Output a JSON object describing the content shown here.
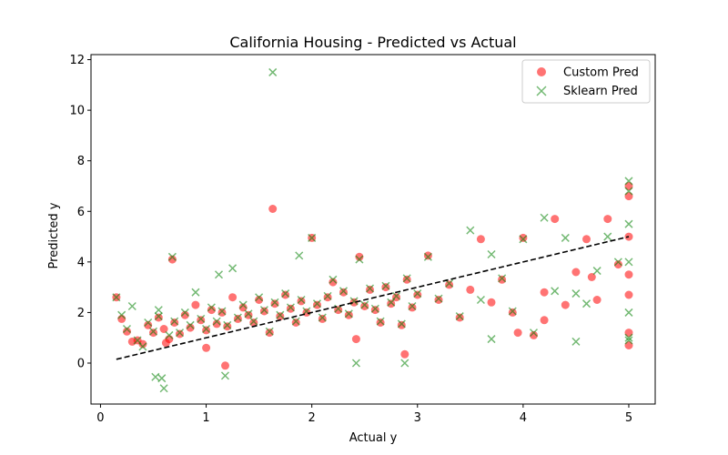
{
  "chart_data": {
    "type": "scatter",
    "title": "California Housing - Predicted vs Actual",
    "xlabel": "Actual y",
    "ylabel": "Predicted y",
    "xlim": [
      -0.09,
      5.25
    ],
    "ylim": [
      -1.62,
      12.2
    ],
    "xticks": [
      0,
      1,
      2,
      3,
      4,
      5
    ],
    "yticks": [
      0,
      2,
      4,
      6,
      8,
      10,
      12
    ],
    "legend_position": "top-right",
    "reference_line": {
      "name": "y = x",
      "style": "dashed",
      "color": "#000000",
      "x": [
        0.15,
        5.0
      ],
      "y": [
        0.15,
        5.0
      ]
    },
    "series": [
      {
        "name": "Custom Pred",
        "marker": "circle",
        "color": "#ff0000",
        "x": [
          0.15,
          0.2,
          0.25,
          0.3,
          0.35,
          0.4,
          0.45,
          0.5,
          0.55,
          0.6,
          0.65,
          0.68,
          0.7,
          0.75,
          0.8,
          0.85,
          0.9,
          0.95,
          1.0,
          1.05,
          1.1,
          1.15,
          1.2,
          1.25,
          1.3,
          1.35,
          1.4,
          1.45,
          1.5,
          1.55,
          1.6,
          1.63,
          1.65,
          1.7,
          1.75,
          1.8,
          1.85,
          1.9,
          1.95,
          2.0,
          2.05,
          2.1,
          2.15,
          2.2,
          2.25,
          2.3,
          2.35,
          2.4,
          2.45,
          2.5,
          2.55,
          2.6,
          2.65,
          2.7,
          2.75,
          2.8,
          2.85,
          2.9,
          2.95,
          3.0,
          3.1,
          3.2,
          3.3,
          3.4,
          3.5,
          3.6,
          3.7,
          3.8,
          3.9,
          4.0,
          4.1,
          4.2,
          4.3,
          4.4,
          4.5,
          4.6,
          4.7,
          4.8,
          4.9,
          5.0,
          5.0,
          5.0,
          5.0,
          5.0,
          5.0,
          5.0,
          1.18,
          2.42,
          2.88,
          4.65,
          3.95,
          4.2,
          1.0,
          0.62
        ],
        "values": [
          2.6,
          1.75,
          1.25,
          0.85,
          0.9,
          0.75,
          1.5,
          1.2,
          1.8,
          1.35,
          0.95,
          4.1,
          1.6,
          1.15,
          1.9,
          1.4,
          2.3,
          1.7,
          1.3,
          2.1,
          1.55,
          2.0,
          1.45,
          2.6,
          1.75,
          2.2,
          1.9,
          1.6,
          2.5,
          2.05,
          1.2,
          6.1,
          2.35,
          1.85,
          2.7,
          2.15,
          1.6,
          2.45,
          2.0,
          4.95,
          2.3,
          1.75,
          2.6,
          3.2,
          2.1,
          2.8,
          1.9,
          2.4,
          4.2,
          2.25,
          2.9,
          2.1,
          1.6,
          3.0,
          2.35,
          2.6,
          1.5,
          3.3,
          2.2,
          2.7,
          4.25,
          2.5,
          3.1,
          1.8,
          2.9,
          4.9,
          2.4,
          3.3,
          2.0,
          4.95,
          1.1,
          2.8,
          5.7,
          2.3,
          3.6,
          4.9,
          2.5,
          5.7,
          3.9,
          2.7,
          7.0,
          6.6,
          5.0,
          3.5,
          1.2,
          0.7,
          -0.1,
          0.95,
          0.35,
          3.4,
          1.2,
          1.7,
          0.6,
          0.8
        ]
      },
      {
        "name": "Sklearn Pred",
        "marker": "x",
        "color": "#008000",
        "x": [
          0.15,
          0.2,
          0.25,
          0.3,
          0.35,
          0.4,
          0.45,
          0.5,
          0.52,
          0.55,
          0.58,
          0.6,
          0.65,
          0.68,
          0.7,
          0.75,
          0.8,
          0.85,
          0.9,
          0.95,
          1.0,
          1.05,
          1.1,
          1.12,
          1.15,
          1.2,
          1.25,
          1.3,
          1.35,
          1.4,
          1.45,
          1.5,
          1.55,
          1.6,
          1.63,
          1.65,
          1.7,
          1.75,
          1.8,
          1.85,
          1.88,
          1.9,
          1.95,
          2.0,
          2.05,
          2.1,
          2.15,
          2.2,
          2.25,
          2.3,
          2.35,
          2.4,
          2.45,
          2.5,
          2.55,
          2.6,
          2.65,
          2.7,
          2.75,
          2.8,
          2.85,
          2.9,
          2.95,
          3.0,
          3.1,
          3.2,
          3.3,
          3.4,
          3.5,
          3.6,
          3.7,
          3.8,
          3.9,
          4.0,
          4.1,
          4.2,
          4.3,
          4.4,
          4.5,
          4.6,
          4.7,
          4.8,
          4.9,
          5.0,
          5.0,
          5.0,
          5.0,
          5.0,
          5.0,
          5.0,
          2.42,
          2.88,
          3.7,
          4.5,
          1.18,
          0.55
        ],
        "values": [
          2.6,
          1.9,
          1.35,
          2.25,
          0.9,
          0.65,
          1.6,
          1.25,
          -0.55,
          1.85,
          -0.6,
          -1.0,
          1.1,
          4.2,
          1.65,
          1.2,
          2.0,
          1.5,
          2.8,
          1.75,
          1.35,
          2.2,
          1.65,
          3.5,
          2.05,
          1.5,
          3.75,
          1.8,
          2.3,
          1.95,
          1.65,
          2.6,
          2.1,
          1.25,
          11.5,
          2.4,
          1.9,
          2.75,
          2.2,
          1.65,
          4.25,
          2.5,
          2.05,
          4.95,
          2.35,
          1.8,
          2.65,
          3.3,
          2.15,
          2.85,
          1.95,
          2.45,
          4.1,
          2.3,
          2.95,
          2.15,
          1.65,
          3.05,
          2.4,
          2.65,
          1.55,
          3.35,
          2.25,
          2.75,
          4.2,
          2.55,
          3.15,
          1.85,
          5.25,
          2.5,
          0.95,
          3.35,
          2.05,
          4.9,
          1.2,
          5.75,
          2.85,
          4.95,
          0.85,
          2.35,
          3.65,
          5.0,
          4.0,
          7.2,
          6.8,
          5.5,
          4.0,
          2.0,
          1.0,
          0.9,
          0.0,
          0.0,
          4.3,
          2.75,
          -0.5,
          2.1
        ]
      }
    ]
  }
}
